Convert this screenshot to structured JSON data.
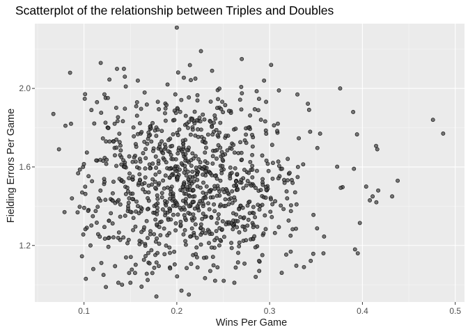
{
  "chart_data": {
    "type": "scatter",
    "title": "Scatterplot of the relationship between Triples and Doubles",
    "xlabel": "Wins Per Game",
    "ylabel": "Fielding Errors Per Game",
    "xlim": [
      0.047,
      0.51
    ],
    "ylim": [
      0.912,
      2.33
    ],
    "x_ticks": [
      "0.1",
      "0.2",
      "0.3",
      "0.4",
      "0.5"
    ],
    "y_ticks": [
      "1.2",
      "1.6",
      "2.0"
    ],
    "grid": true,
    "point_color": "#4d4d4d",
    "point_stroke": "#000000",
    "background_color": "#ebebeb",
    "point_count": 1000,
    "points_summary": "approximately 1000 points centered near (0.21, 1.52); selected points listed",
    "points": [
      [
        0.067,
        1.87
      ],
      [
        0.073,
        1.69
      ],
      [
        0.079,
        1.37
      ],
      [
        0.08,
        1.81
      ],
      [
        0.085,
        2.08
      ],
      [
        0.086,
        1.82
      ],
      [
        0.087,
        1.44
      ],
      [
        0.098,
        1.47
      ],
      [
        0.099,
        1.6
      ],
      [
        0.102,
        1.03
      ],
      [
        0.103,
        1.29
      ],
      [
        0.107,
        1.2
      ],
      [
        0.108,
        1.89
      ],
      [
        0.11,
        1.08
      ],
      [
        0.114,
        1.93
      ],
      [
        0.118,
        2.13
      ],
      [
        0.121,
        1.05
      ],
      [
        0.122,
        1.97
      ],
      [
        0.127,
        1.24
      ],
      [
        0.133,
        1.82
      ],
      [
        0.137,
        1.01
      ],
      [
        0.141,
        1.0
      ],
      [
        0.143,
        2.1
      ],
      [
        0.144,
        2.06
      ],
      [
        0.145,
        2.01
      ],
      [
        0.15,
        1.01
      ],
      [
        0.155,
        1.06
      ],
      [
        0.158,
        2.04
      ],
      [
        0.162,
        0.99
      ],
      [
        0.178,
        0.94
      ],
      [
        0.19,
        2.02
      ],
      [
        0.2,
        2.31
      ],
      [
        0.205,
        0.97
      ],
      [
        0.213,
        0.95
      ],
      [
        0.22,
        2.05
      ],
      [
        0.226,
        2.19
      ],
      [
        0.238,
        2.09
      ],
      [
        0.262,
        1.01
      ],
      [
        0.27,
        2.15
      ],
      [
        0.285,
        1.04
      ],
      [
        0.294,
        2.04
      ],
      [
        0.31,
        1.99
      ],
      [
        0.337,
        1.09
      ],
      [
        0.358,
        1.16
      ],
      [
        0.376,
        2.0
      ],
      [
        0.39,
        1.88
      ],
      [
        0.392,
        1.18
      ],
      [
        0.395,
        1.16
      ],
      [
        0.404,
        1.5
      ],
      [
        0.408,
        1.43
      ],
      [
        0.411,
        1.45
      ],
      [
        0.415,
        1.42
      ],
      [
        0.416,
        1.69
      ],
      [
        0.417,
        1.48
      ],
      [
        0.432,
        1.45
      ],
      [
        0.438,
        1.53
      ],
      [
        0.476,
        1.84
      ],
      [
        0.487,
        1.77
      ]
    ]
  }
}
